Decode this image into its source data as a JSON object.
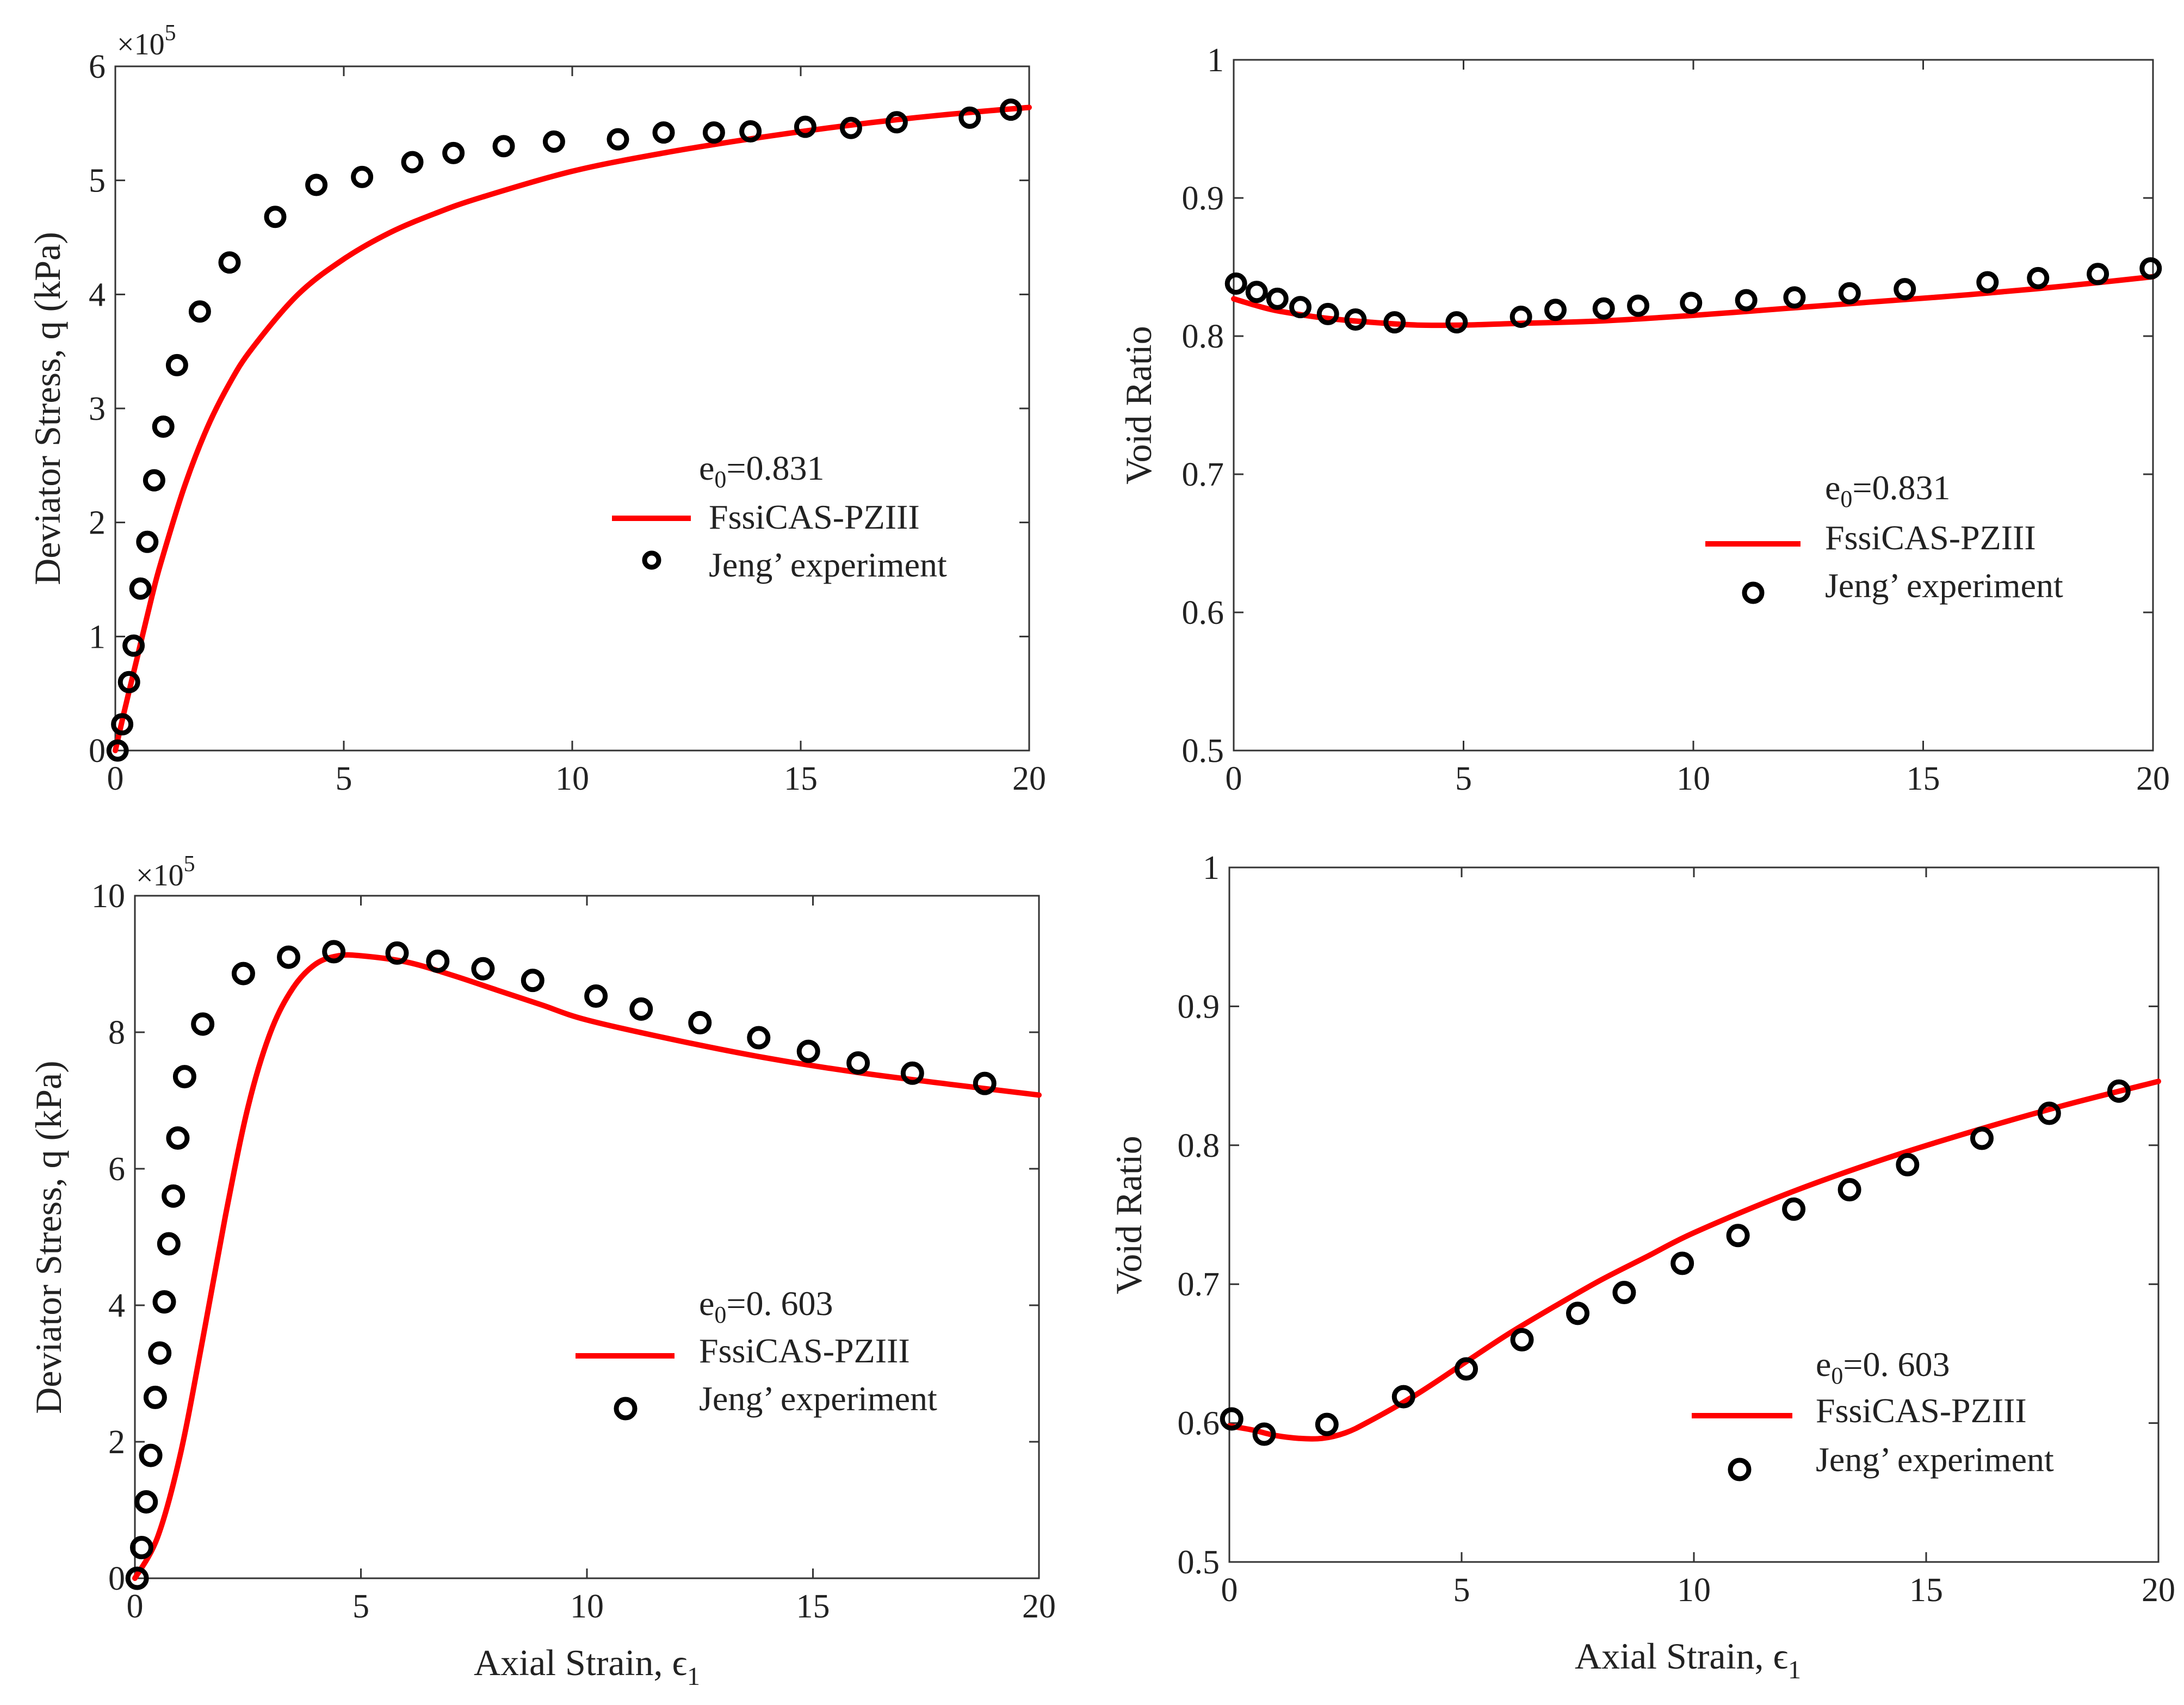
{
  "chart_data": [
    {
      "id": "q1",
      "type": "line",
      "xlabel": "",
      "ylabel": "Deviator Stress, q (kPa)",
      "xlim": [
        0,
        20
      ],
      "ylim": [
        0,
        600000
      ],
      "xticks": [
        "0",
        "5",
        "10",
        "15",
        "20"
      ],
      "yticks": [
        "0",
        "1",
        "2",
        "3",
        "4",
        "5",
        "6"
      ],
      "exponent_label": "×10",
      "exponent_power": "5",
      "legend": {
        "e0_prefix": "e",
        "e0_sub": "0",
        "e0_value": "=0.831",
        "line_label": "FssiCAS-PZIII",
        "marker_label": "Jeng’ experiment"
      },
      "series": [
        {
          "name": "FssiCAS-PZIII",
          "style": "line",
          "x": [
            0,
            0.2,
            0.5,
            0.8,
            1,
            1.5,
            2,
            2.5,
            3,
            4,
            5,
            6,
            7,
            8,
            10,
            12,
            14,
            16,
            18,
            20
          ],
          "y": [
            0,
            35000,
            85000,
            135000,
            165000,
            230000,
            282000,
            322000,
            353000,
            400000,
            431000,
            454000,
            471000,
            485000,
            508000,
            524000,
            537000,
            548000,
            557000,
            564000
          ]
        },
        {
          "name": "Jeng’ experiment",
          "style": "marker",
          "x": [
            0.05,
            0.15,
            0.3,
            0.4,
            0.55,
            0.7,
            0.85,
            1.05,
            1.35,
            1.85,
            2.5,
            3.5,
            4.4,
            5.4,
            6.5,
            7.4,
            8.5,
            9.6,
            11,
            12,
            13.1,
            13.9,
            15.1,
            16.1,
            17.1,
            18.7,
            19.6
          ],
          "y": [
            0,
            23000,
            60000,
            92000,
            142000,
            183000,
            237000,
            284000,
            338000,
            385000,
            428000,
            468000,
            496000,
            503000,
            516000,
            524000,
            530000,
            534000,
            536000,
            542000,
            542000,
            543000,
            547000,
            546000,
            551000,
            555000,
            562000
          ]
        }
      ]
    },
    {
      "id": "v1",
      "type": "line",
      "xlabel": "",
      "ylabel": "Void Ratio",
      "xlim": [
        0,
        20
      ],
      "ylim": [
        0.5,
        1
      ],
      "xticks": [
        "0",
        "5",
        "10",
        "15",
        "20"
      ],
      "yticks": [
        "0.5",
        "0.6",
        "0.7",
        "0.8",
        "0.9",
        "1"
      ],
      "legend": {
        "e0_prefix": "e",
        "e0_sub": "0",
        "e0_value": "=0.831",
        "line_label": "FssiCAS-PZIII",
        "marker_label": "Jeng’ experiment"
      },
      "series": [
        {
          "name": "FssiCAS-PZIII",
          "style": "line",
          "x": [
            0,
            0.5,
            1,
            2,
            3,
            4,
            5,
            6,
            8,
            10,
            12,
            14,
            16,
            18,
            20
          ],
          "y": [
            0.827,
            0.822,
            0.818,
            0.813,
            0.81,
            0.808,
            0.808,
            0.809,
            0.811,
            0.815,
            0.82,
            0.825,
            0.83,
            0.836,
            0.843
          ]
        },
        {
          "name": "Jeng’ experiment",
          "style": "marker",
          "x": [
            0.05,
            0.5,
            0.95,
            1.45,
            2.05,
            2.65,
            3.5,
            4.85,
            6.25,
            7,
            8.05,
            8.8,
            9.95,
            11.15,
            12.2,
            13.4,
            14.6,
            16.4,
            17.5,
            18.8,
            19.95
          ],
          "y": [
            0.838,
            0.832,
            0.827,
            0.821,
            0.816,
            0.812,
            0.81,
            0.81,
            0.814,
            0.819,
            0.82,
            0.822,
            0.824,
            0.826,
            0.828,
            0.831,
            0.834,
            0.839,
            0.842,
            0.845,
            0.849
          ]
        }
      ]
    },
    {
      "id": "q2",
      "type": "line",
      "xlabel": "Axial Strain, ϵ",
      "xlabel_sub": "1",
      "ylabel": "Deviator Stress, q (kPa)",
      "xlim": [
        0,
        20
      ],
      "ylim": [
        0,
        1000000
      ],
      "xticks": [
        "0",
        "5",
        "10",
        "15",
        "20"
      ],
      "yticks": [
        "0",
        "2",
        "4",
        "6",
        "8",
        "10"
      ],
      "exponent_label": "×10",
      "exponent_power": "5",
      "legend": {
        "e0_prefix": "e",
        "e0_sub": "0",
        "e0_value": "=0. 603",
        "line_label": "FssiCAS-PZIII",
        "marker_label": "Jeng’ experiment"
      },
      "series": [
        {
          "name": "FssiCAS-PZIII",
          "style": "line",
          "x": [
            0,
            0.5,
            1,
            1.5,
            2,
            2.5,
            3,
            3.5,
            4,
            4.5,
            5,
            6,
            7,
            8,
            9,
            10,
            12,
            14,
            16,
            18,
            20
          ],
          "y": [
            0,
            60000,
            180000,
            350000,
            530000,
            690000,
            800000,
            865000,
            900000,
            912000,
            912000,
            903000,
            884000,
            862000,
            840000,
            818000,
            788000,
            762000,
            741000,
            724000,
            708000
          ]
        },
        {
          "name": "Jeng’ experiment",
          "style": "marker",
          "x": [
            0.05,
            0.15,
            0.25,
            0.35,
            0.45,
            0.55,
            0.65,
            0.75,
            0.85,
            0.95,
            1.1,
            1.5,
            2.4,
            3.4,
            4.4,
            5.8,
            6.7,
            7.7,
            8.8,
            10.2,
            11.2,
            12.5,
            13.8,
            14.9,
            16,
            17.2,
            18.8
          ],
          "y": [
            0,
            45000,
            112000,
            180000,
            265000,
            330000,
            405000,
            490000,
            560000,
            645000,
            735000,
            812000,
            886000,
            910000,
            918000,
            916000,
            904000,
            893000,
            876000,
            853000,
            834000,
            814000,
            792000,
            772000,
            755000,
            740000,
            725000
          ]
        }
      ]
    },
    {
      "id": "v2",
      "type": "line",
      "xlabel": "Axial Strain, ϵ",
      "xlabel_sub": "1",
      "ylabel": "Void Ratio",
      "xlim": [
        0,
        20
      ],
      "ylim": [
        0.5,
        1
      ],
      "xticks": [
        "0",
        "5",
        "10",
        "15",
        "20"
      ],
      "yticks": [
        "0.5",
        "0.6",
        "0.7",
        "0.8",
        "0.9",
        "1"
      ],
      "legend": {
        "e0_prefix": "e",
        "e0_sub": "0",
        "e0_value": "=0. 603",
        "line_label": "FssiCAS-PZIII",
        "marker_label": "Jeng’ experiment"
      },
      "series": [
        {
          "name": "FssiCAS-PZIII",
          "style": "line",
          "x": [
            0,
            0.5,
            1,
            1.5,
            2,
            2.5,
            3,
            4,
            5,
            6,
            7,
            8,
            9,
            10,
            12,
            14,
            16,
            18,
            20
          ],
          "y": [
            0.598,
            0.595,
            0.591,
            0.589,
            0.589,
            0.593,
            0.601,
            0.62,
            0.642,
            0.664,
            0.684,
            0.703,
            0.72,
            0.737,
            0.765,
            0.789,
            0.81,
            0.829,
            0.846
          ]
        },
        {
          "name": "Jeng’ experiment",
          "style": "marker",
          "x": [
            0.05,
            0.75,
            2.1,
            3.75,
            5.1,
            6.3,
            7.5,
            8.5,
            9.75,
            10.95,
            12.15,
            13.35,
            14.6,
            16.2,
            17.65,
            19.15
          ],
          "y": [
            0.603,
            0.592,
            0.599,
            0.619,
            0.639,
            0.66,
            0.679,
            0.694,
            0.715,
            0.735,
            0.754,
            0.768,
            0.786,
            0.805,
            0.823,
            0.839
          ]
        }
      ]
    }
  ]
}
